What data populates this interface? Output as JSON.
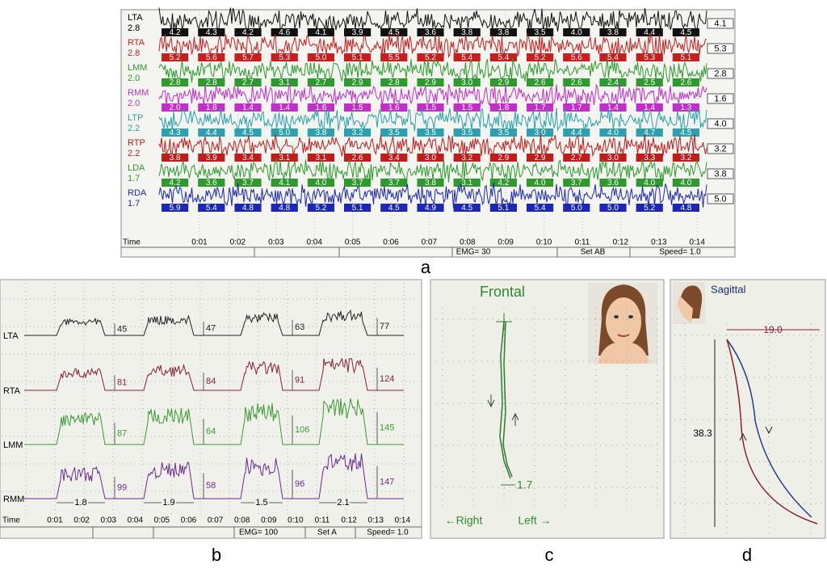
{
  "panel_a": {
    "label": "a",
    "channels": [
      {
        "name": "LTA",
        "gain": "2.8",
        "color": "#111111",
        "values": [
          "4.2",
          "4.3",
          "4.2",
          "4.6",
          "4.1",
          "3.9",
          "4.5",
          "3.6",
          "3.8",
          "3.8",
          "3.5",
          "4.0",
          "3.8",
          "4.4",
          "4.5"
        ],
        "current": "4.1"
      },
      {
        "name": "RTA",
        "gain": "2.8",
        "color": "#c81e1e",
        "values": [
          "5.2",
          "5.6",
          "5.7",
          "5.3",
          "5.0",
          "5.1",
          "5.5",
          "5.2",
          "5.4",
          "5.4",
          "5.2",
          "5.6",
          "5.4",
          "5.3",
          "5.1"
        ],
        "current": "5.3"
      },
      {
        "name": "LMM",
        "gain": "2.0",
        "color": "#2e9a2e",
        "values": [
          "2.8",
          "2.8",
          "2.7",
          "3.1",
          "2.7",
          "2.9",
          "2.8",
          "2.9",
          "3.0",
          "2.9",
          "2.6",
          "2.6",
          "2.4",
          "2.5",
          "2.6"
        ],
        "current": "2.8"
      },
      {
        "name": "RMM",
        "gain": "2.0",
        "color": "#c030c8",
        "values": [
          "2.0",
          "1.8",
          "1.4",
          "1.4",
          "1.6",
          "1.5",
          "1.6",
          "1.5",
          "1.5",
          "1.8",
          "1.7",
          "1.7",
          "1.4",
          "1.4",
          "1.3"
        ],
        "current": "1.6"
      },
      {
        "name": "LTP",
        "gain": "2.2",
        "color": "#2aa0b0",
        "values": [
          "4.3",
          "4.4",
          "4.5",
          "5.0",
          "3.8",
          "3.2",
          "3.5",
          "3.5",
          "3.5",
          "3.5",
          "3.0",
          "4.4",
          "4.0",
          "4.7",
          "4.5"
        ],
        "current": "4.0"
      },
      {
        "name": "RTP",
        "gain": "2.2",
        "color": "#c01c1c",
        "values": [
          "3.8",
          "3.9",
          "3.4",
          "3.1",
          "3.1",
          "2.6",
          "3.4",
          "3.0",
          "3.2",
          "2.9",
          "2.9",
          "2.7",
          "3.0",
          "3.3",
          "3.2"
        ],
        "current": "3.2"
      },
      {
        "name": "LDA",
        "gain": "1.7",
        "color": "#2e9a2e",
        "values": [
          "4.2",
          "3.6",
          "3.7",
          "4.1",
          "4.0",
          "3.7",
          "3.7",
          "3.8",
          "3.1",
          "4.2",
          "4.0",
          "3.7",
          "3.6",
          "4.0",
          "4.0"
        ],
        "current": "3.8"
      },
      {
        "name": "RDA",
        "gain": "1.7",
        "color": "#1c28b4",
        "values": [
          "5.9",
          "5.4",
          "4.8",
          "4.8",
          "5.2",
          "5.1",
          "4.5",
          "4.9",
          "4.5",
          "5.1",
          "5.4",
          "5.0",
          "5.0",
          "5.2",
          "4.8"
        ],
        "current": "5.0"
      }
    ],
    "time_label": "Time",
    "times": [
      "0:01",
      "0:02",
      "0:03",
      "0:04",
      "0:05",
      "0:06",
      "0:07",
      "0:08",
      "0:09",
      "0:10",
      "0:11",
      "0:12",
      "0:13",
      "0:14"
    ],
    "status": [
      "EMG= 30",
      "Set AB",
      "Speed= 1.0"
    ]
  },
  "panel_b": {
    "label": "b",
    "channels": [
      {
        "name": "LTA",
        "color": "#222222",
        "peaks": [
          "45",
          "47",
          "63",
          "77"
        ]
      },
      {
        "name": "RTA",
        "color": "#8a2030",
        "peaks": [
          "81",
          "84",
          "91",
          "124"
        ]
      },
      {
        "name": "LMM",
        "color": "#3a9a30",
        "peaks": [
          "87",
          "64",
          "106",
          "145"
        ]
      },
      {
        "name": "RMM",
        "color": "#6a2a90",
        "peaks": [
          "99",
          "58",
          "96",
          "147"
        ]
      }
    ],
    "durations": [
      "1.8",
      "1.9",
      "1.5",
      "2.1"
    ],
    "time_label": "Time",
    "times": [
      "0:01",
      "0:02",
      "0:03",
      "0:04",
      "0:05",
      "0:06",
      "0:07",
      "0:08",
      "0:09",
      "0:10",
      "0:11",
      "0:12",
      "0:13",
      "0:14"
    ],
    "status": [
      "EMG= 100",
      "Set A",
      "Speed= 1.0"
    ]
  },
  "panel_c": {
    "label": "c",
    "title": "Frontal",
    "deviation": "1.7",
    "left_dir": "←Right",
    "right_dir": "Left →"
  },
  "panel_d": {
    "label": "d",
    "title": "Sagittal",
    "horizontal": "19.0",
    "vertical": "38.3"
  }
}
